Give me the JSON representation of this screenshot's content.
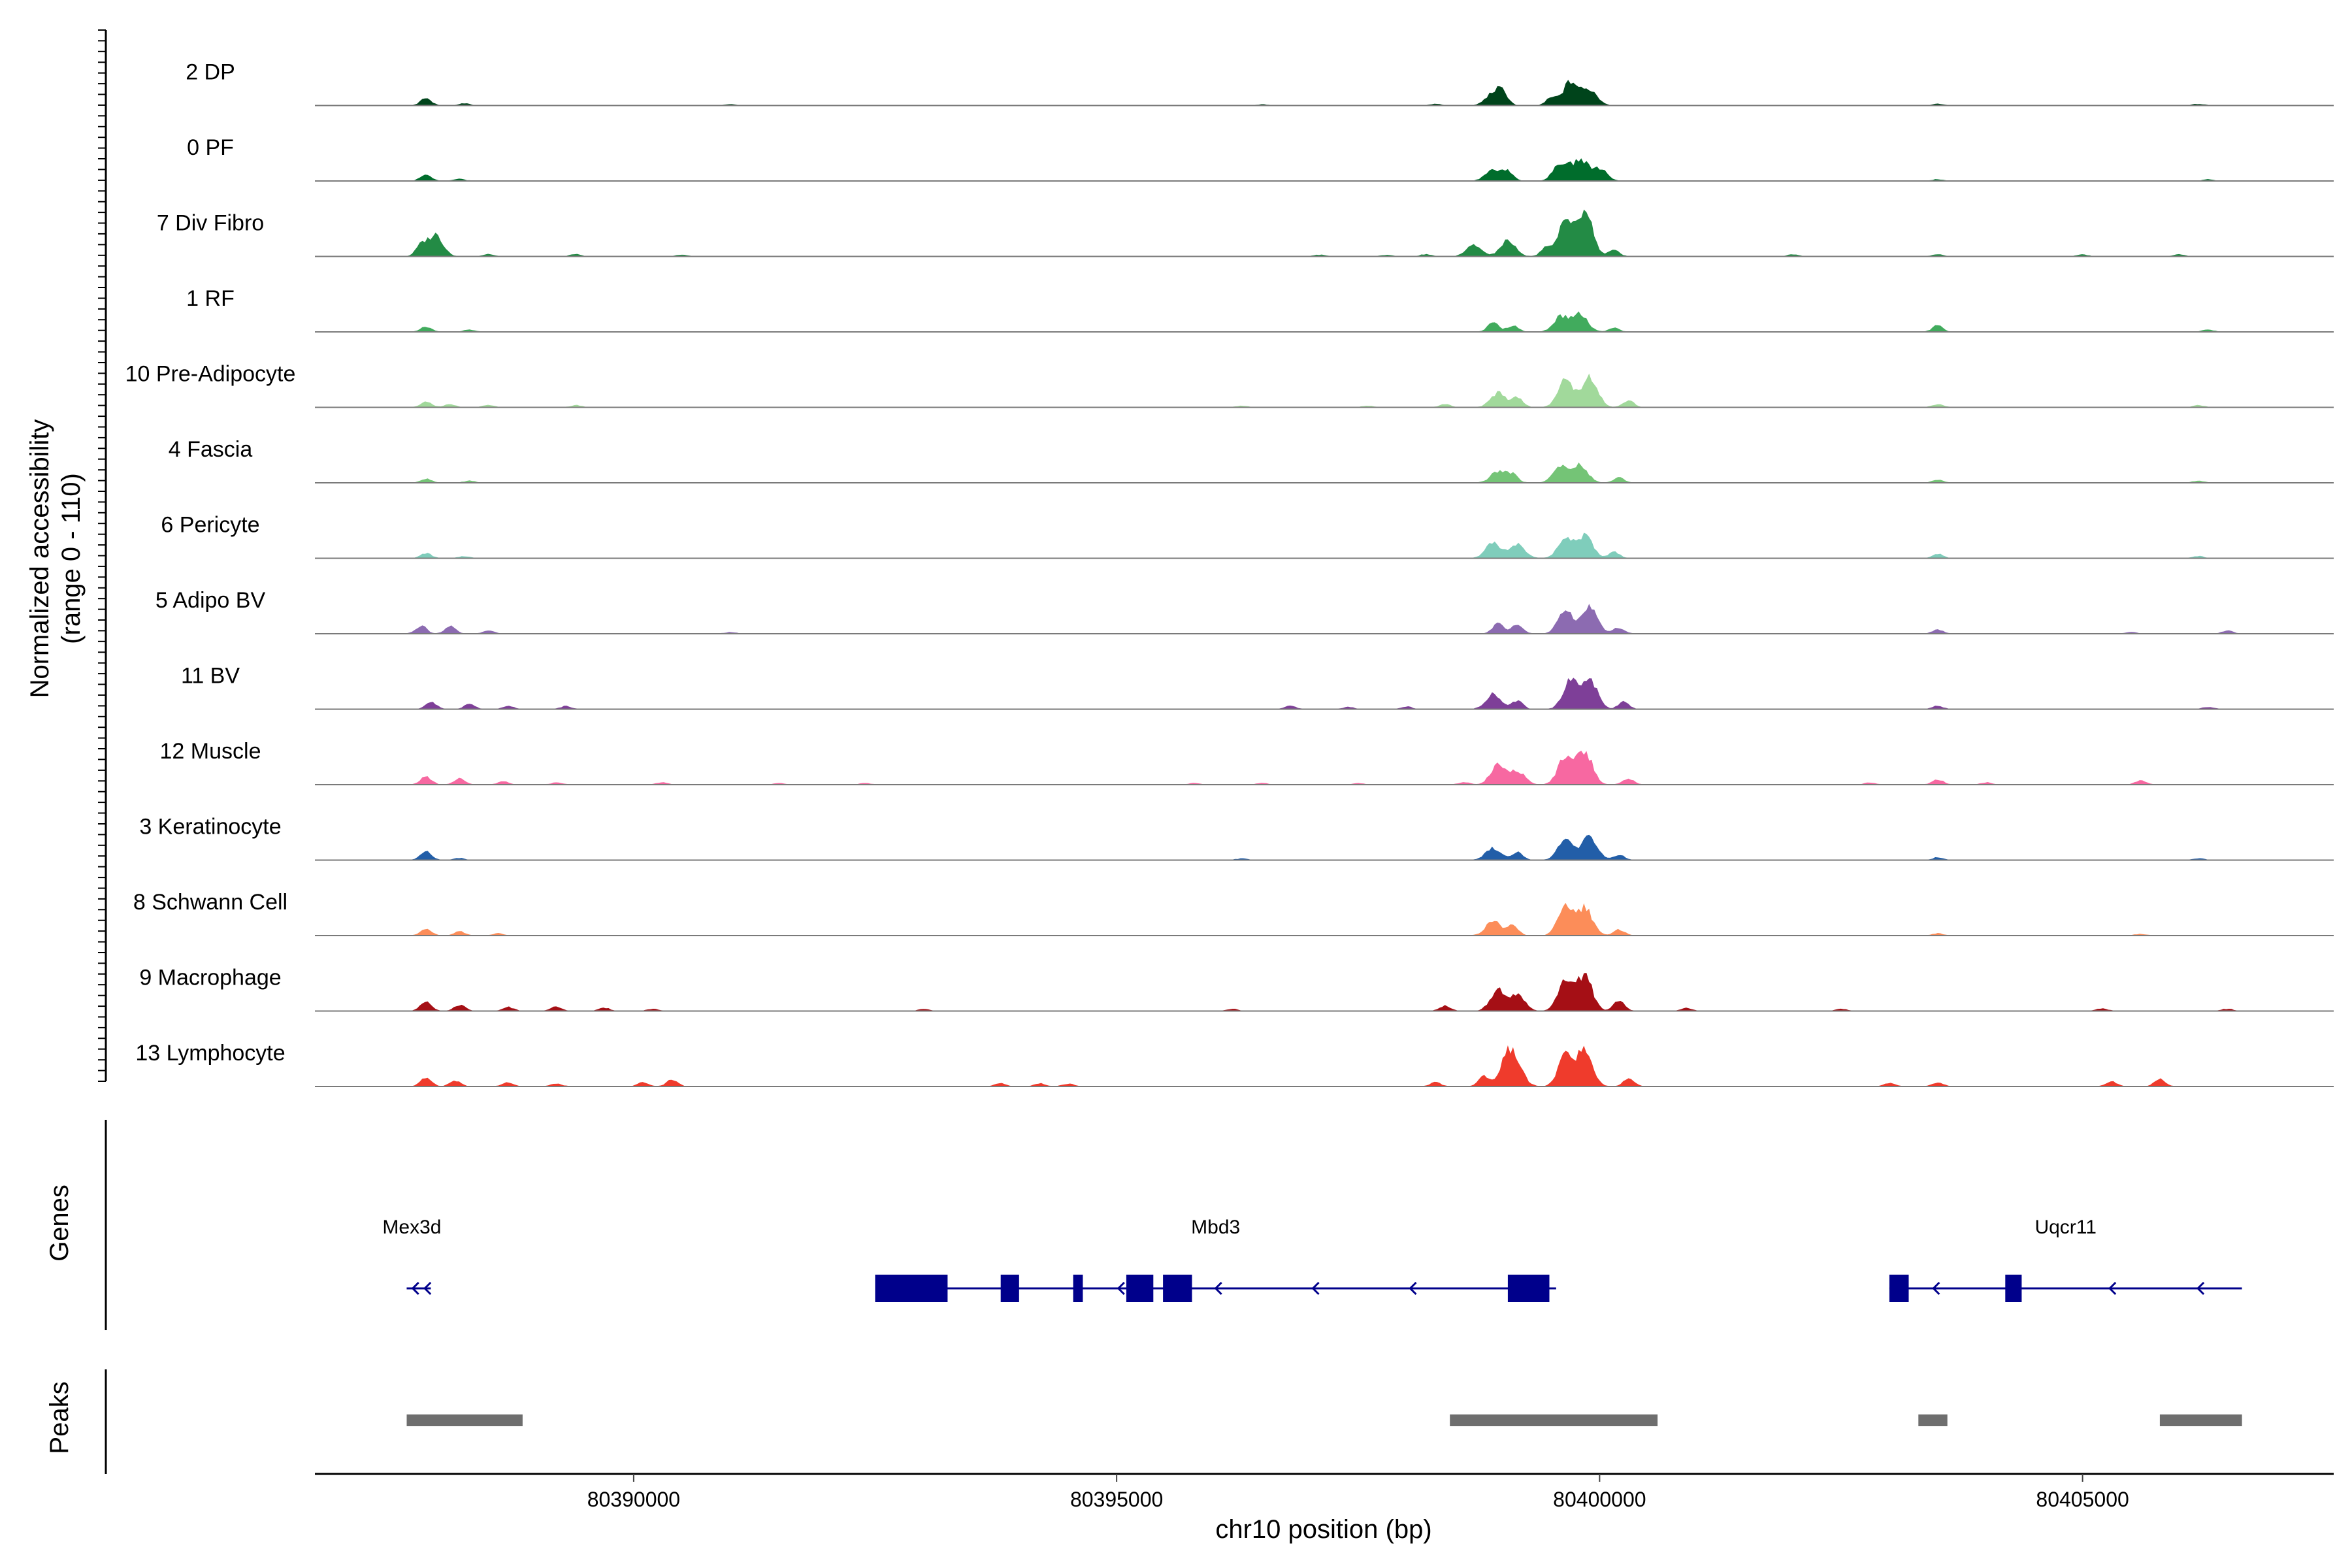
{
  "chart_data": {
    "type": "area",
    "title": "",
    "xlabel": "chr10 position (bp)",
    "ylabel_line1": "Normalized accessibility",
    "ylabel_line2": "(range 0 - 110)",
    "yrange": [
      0,
      110
    ],
    "xlim": [
      80386700,
      80407600
    ],
    "x_ticks": [
      80390000,
      80395000,
      80400000,
      80405000
    ],
    "x_tick_labels": [
      "80390000",
      "80395000",
      "80400000",
      "80405000"
    ],
    "tracks": [
      {
        "name": "2 DP",
        "color": "#00441b",
        "peaks": [
          [
            80387850,
            14
          ],
          [
            80388250,
            4
          ],
          [
            80391000,
            2
          ],
          [
            80396500,
            2
          ],
          [
            80398300,
            3
          ],
          [
            80398900,
            24
          ],
          [
            80399000,
            20
          ],
          [
            80399500,
            14
          ],
          [
            80399700,
            46
          ],
          [
            80399900,
            30
          ],
          [
            80403500,
            3
          ],
          [
            80406200,
            3
          ]
        ]
      },
      {
        "name": "0 PF",
        "color": "#006d2c",
        "peaks": [
          [
            80387850,
            12
          ],
          [
            80388200,
            4
          ],
          [
            80398900,
            22
          ],
          [
            80399050,
            18
          ],
          [
            80399600,
            34
          ],
          [
            80399800,
            40
          ],
          [
            80400000,
            24
          ],
          [
            80403500,
            3
          ],
          [
            80406300,
            3
          ]
        ]
      },
      {
        "name": "7 Div Fibro",
        "color": "#238b45",
        "peaks": [
          [
            80387800,
            20
          ],
          [
            80387950,
            42
          ],
          [
            80388500,
            4
          ],
          [
            80389400,
            4
          ],
          [
            80390500,
            3
          ],
          [
            80397100,
            3
          ],
          [
            80397800,
            3
          ],
          [
            80398200,
            4
          ],
          [
            80398700,
            22
          ],
          [
            80399050,
            30
          ],
          [
            80399450,
            18
          ],
          [
            80399650,
            66
          ],
          [
            80399850,
            90
          ],
          [
            80400150,
            12
          ],
          [
            80402000,
            4
          ],
          [
            80403500,
            4
          ],
          [
            80405000,
            4
          ],
          [
            80406000,
            4
          ]
        ]
      },
      {
        "name": "1 RF",
        "color": "#41ab5d",
        "peaks": [
          [
            80387850,
            10
          ],
          [
            80388300,
            4
          ],
          [
            80398900,
            18
          ],
          [
            80399100,
            12
          ],
          [
            80399600,
            30
          ],
          [
            80399800,
            34
          ],
          [
            80400150,
            8
          ],
          [
            80403500,
            12
          ],
          [
            80406300,
            4
          ]
        ]
      },
      {
        "name": "10 Pre-Adipocyte",
        "color": "#a1d99b",
        "peaks": [
          [
            80387850,
            10
          ],
          [
            80388100,
            6
          ],
          [
            80388500,
            4
          ],
          [
            80389400,
            4
          ],
          [
            80396300,
            3
          ],
          [
            80397600,
            3
          ],
          [
            80398400,
            6
          ],
          [
            80398950,
            28
          ],
          [
            80399150,
            20
          ],
          [
            80399650,
            56
          ],
          [
            80399900,
            62
          ],
          [
            80400300,
            14
          ],
          [
            80403500,
            6
          ],
          [
            80406200,
            4
          ]
        ]
      },
      {
        "name": "4 Fascia",
        "color": "#74c476",
        "peaks": [
          [
            80387850,
            8
          ],
          [
            80388300,
            4
          ],
          [
            80398950,
            22
          ],
          [
            80399100,
            16
          ],
          [
            80399600,
            32
          ],
          [
            80399800,
            34
          ],
          [
            80400200,
            10
          ],
          [
            80403500,
            6
          ],
          [
            80406200,
            4
          ]
        ]
      },
      {
        "name": "6 Pericyte",
        "color": "#7fcdbb",
        "peaks": [
          [
            80387850,
            10
          ],
          [
            80388250,
            4
          ],
          [
            80398900,
            30
          ],
          [
            80399150,
            28
          ],
          [
            80399650,
            40
          ],
          [
            80399850,
            44
          ],
          [
            80400150,
            12
          ],
          [
            80403500,
            8
          ],
          [
            80406200,
            4
          ]
        ]
      },
      {
        "name": "5 Adipo BV",
        "color": "#8c6bb1",
        "peaks": [
          [
            80387800,
            16
          ],
          [
            80388100,
            14
          ],
          [
            80388500,
            6
          ],
          [
            80391000,
            3
          ],
          [
            80398950,
            20
          ],
          [
            80399150,
            18
          ],
          [
            80399650,
            48
          ],
          [
            80399900,
            54
          ],
          [
            80400200,
            12
          ],
          [
            80403500,
            8
          ],
          [
            80405500,
            3
          ],
          [
            80406500,
            6
          ]
        ]
      },
      {
        "name": "11 BV",
        "color": "#7e3f98",
        "peaks": [
          [
            80387900,
            14
          ],
          [
            80388300,
            10
          ],
          [
            80388700,
            6
          ],
          [
            80389300,
            6
          ],
          [
            80396800,
            6
          ],
          [
            80397400,
            4
          ],
          [
            80398000,
            5
          ],
          [
            80398900,
            30
          ],
          [
            80399150,
            16
          ],
          [
            80399700,
            56
          ],
          [
            80399900,
            58
          ],
          [
            80400250,
            14
          ],
          [
            80403500,
            6
          ],
          [
            80406300,
            4
          ]
        ]
      },
      {
        "name": "12 Muscle",
        "color": "#f768a1",
        "peaks": [
          [
            80387850,
            16
          ],
          [
            80388200,
            12
          ],
          [
            80388650,
            6
          ],
          [
            80389200,
            4
          ],
          [
            80390300,
            5
          ],
          [
            80391500,
            3
          ],
          [
            80392400,
            3
          ],
          [
            80395800,
            3
          ],
          [
            80396500,
            3
          ],
          [
            80397500,
            3
          ],
          [
            80398600,
            5
          ],
          [
            80398950,
            38
          ],
          [
            80399150,
            26
          ],
          [
            80399650,
            56
          ],
          [
            80399850,
            64
          ],
          [
            80400300,
            12
          ],
          [
            80402800,
            4
          ],
          [
            80403500,
            10
          ],
          [
            80404000,
            4
          ],
          [
            80405600,
            8
          ]
        ]
      },
      {
        "name": "3 Keratinocyte",
        "color": "#225ea8",
        "peaks": [
          [
            80387850,
            16
          ],
          [
            80388200,
            4
          ],
          [
            80396300,
            3
          ],
          [
            80398900,
            24
          ],
          [
            80399150,
            16
          ],
          [
            80399650,
            40
          ],
          [
            80399900,
            46
          ],
          [
            80400200,
            10
          ],
          [
            80403500,
            5
          ],
          [
            80406200,
            3
          ]
        ]
      },
      {
        "name": "8 Schwann Cell",
        "color": "#fc8d59",
        "peaks": [
          [
            80387850,
            14
          ],
          [
            80388200,
            8
          ],
          [
            80388600,
            4
          ],
          [
            80398900,
            28
          ],
          [
            80399100,
            20
          ],
          [
            80399650,
            58
          ],
          [
            80399850,
            52
          ],
          [
            80400200,
            12
          ],
          [
            80403500,
            4
          ],
          [
            80405600,
            3
          ]
        ]
      },
      {
        "name": "9 Macrophage",
        "color": "#a50f15",
        "peaks": [
          [
            80387850,
            20
          ],
          [
            80388200,
            12
          ],
          [
            80388700,
            8
          ],
          [
            80389200,
            8
          ],
          [
            80389700,
            6
          ],
          [
            80390200,
            4
          ],
          [
            80393000,
            4
          ],
          [
            80396200,
            4
          ],
          [
            80398400,
            10
          ],
          [
            80398950,
            42
          ],
          [
            80399150,
            30
          ],
          [
            80399650,
            60
          ],
          [
            80399850,
            66
          ],
          [
            80400200,
            20
          ],
          [
            80400900,
            6
          ],
          [
            80402500,
            4
          ],
          [
            80405200,
            5
          ],
          [
            80406500,
            4
          ]
        ]
      },
      {
        "name": "13 Lymphocyte",
        "color": "#ef3b2c",
        "peaks": [
          [
            80387850,
            18
          ],
          [
            80388150,
            12
          ],
          [
            80388700,
            8
          ],
          [
            80389200,
            6
          ],
          [
            80390100,
            8
          ],
          [
            80390400,
            14
          ],
          [
            80393800,
            6
          ],
          [
            80394200,
            6
          ],
          [
            80394500,
            5
          ],
          [
            80398300,
            8
          ],
          [
            80398800,
            20
          ],
          [
            80399050,
            56
          ],
          [
            80399150,
            30
          ],
          [
            80399650,
            60
          ],
          [
            80399850,
            70
          ],
          [
            80400300,
            16
          ],
          [
            80403000,
            6
          ],
          [
            80403500,
            8
          ],
          [
            80405300,
            10
          ],
          [
            80405800,
            14
          ]
        ]
      }
    ],
    "genes": [
      {
        "name": "Mex3d",
        "strand": "-",
        "start": 80387650,
        "end": 80387900,
        "exons": []
      },
      {
        "name": "Mbd3",
        "strand": "-",
        "start": 80392500,
        "end": 80399550,
        "exons": [
          [
            80392500,
            80393250
          ],
          [
            80393800,
            80393990
          ],
          [
            80394550,
            80394650
          ],
          [
            80395100,
            80395380
          ],
          [
            80395480,
            80395780
          ],
          [
            80399050,
            80399480
          ]
        ]
      },
      {
        "name": "Uqcr11",
        "strand": "-",
        "start": 80403000,
        "end": 80406650,
        "exons": [
          [
            80403000,
            80403200
          ],
          [
            80404200,
            80404370
          ]
        ]
      }
    ],
    "peaks": [
      [
        80387650,
        80388850
      ],
      [
        80398450,
        80400600
      ],
      [
        80403300,
        80403600
      ],
      [
        80405800,
        80406650
      ]
    ],
    "panel_labels": {
      "genes": "Genes",
      "peaks": "Peaks"
    }
  }
}
